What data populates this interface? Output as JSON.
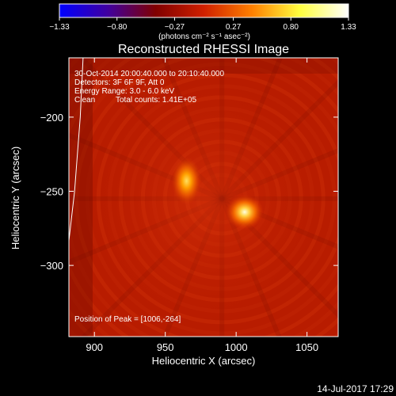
{
  "chart_data": {
    "type": "heatmap",
    "title": "Reconstructed RHESSI Image",
    "xlabel": "Heliocentric X (arcsec)",
    "ylabel": "Heliocentric Y (arcsec)",
    "xlim": [
      882,
      1072
    ],
    "ylim": [
      -348,
      -160
    ],
    "xticks": [
      900,
      950,
      1000,
      1050
    ],
    "yticks": [
      -200,
      -250,
      -300
    ],
    "xtick_labels": [
      "900",
      "950",
      "1000",
      "1050"
    ],
    "ytick_labels": [
      "−200",
      "−250",
      "−300"
    ],
    "colorbar": {
      "title": "(photons cm⁻² s⁻¹ asec⁻²)",
      "min": -1.33,
      "max": 1.33,
      "ticks": [
        -1.33,
        -0.8,
        -0.27,
        0.27,
        0.8,
        1.33
      ],
      "tick_labels": [
        "−1.33",
        "−0.80",
        "−0.27",
        "0.27",
        "0.80",
        "1.33"
      ],
      "colors": [
        "#0000ff",
        "#4000a0",
        "#800000",
        "#d02000",
        "#ff8000",
        "#ffff40",
        "#ffffff"
      ]
    },
    "annotations": [
      "30-Oct-2014 20:00:40.000 to 20:10:40.000",
      "Detectors: 3F 6F 9F, Att 0",
      "Energy Range: 3.0 - 6.0 keV",
      "Clean",
      "Total counts: 1.41E+05"
    ],
    "peak_label": "Position of Peak = [1006,-264]",
    "sources": [
      {
        "x": 1006,
        "y": -264,
        "peak": 1.33
      },
      {
        "x": 965,
        "y": -243,
        "peak": 1.1
      }
    ],
    "limb_curve": [
      [
        892,
        -160
      ],
      [
        890,
        -200
      ],
      [
        886,
        -250
      ],
      [
        880,
        -300
      ]
    ],
    "grid": false
  },
  "footer": {
    "date": "14-Jul-2017 17:29"
  }
}
